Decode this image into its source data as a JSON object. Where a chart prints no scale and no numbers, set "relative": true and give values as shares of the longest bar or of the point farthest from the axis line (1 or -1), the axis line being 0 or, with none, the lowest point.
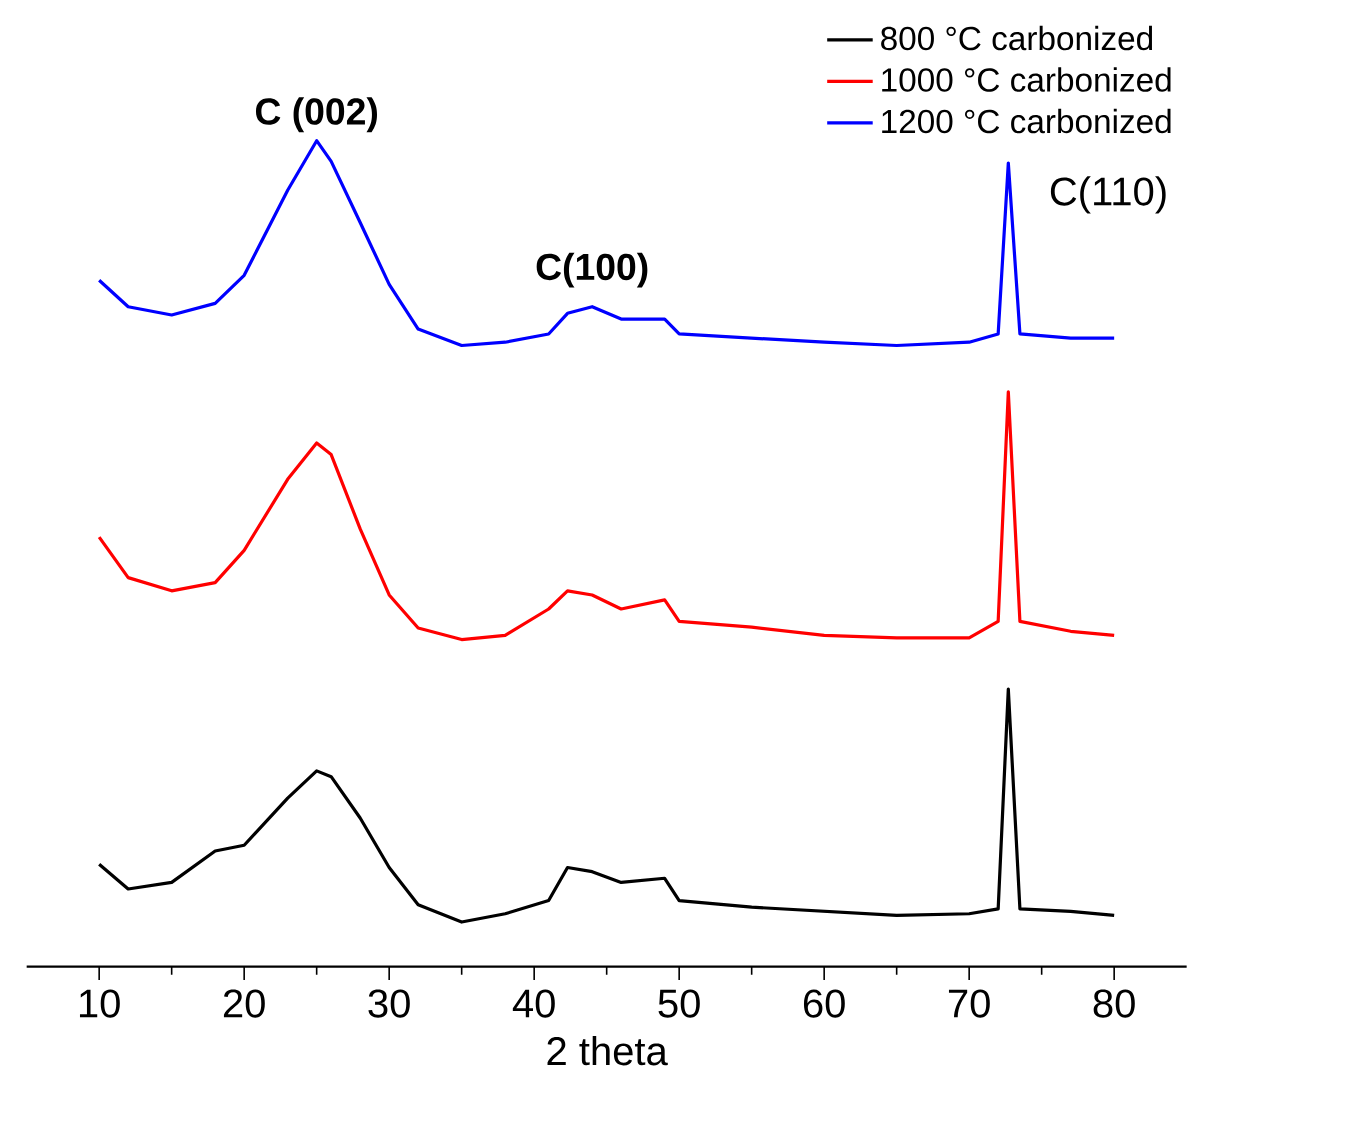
{
  "chart_data": {
    "type": "line",
    "xlabel": "2 theta",
    "relative": true,
    "legend": "top right",
    "xlim": [
      5,
      85
    ],
    "xticks": [
      10,
      20,
      30,
      40,
      50,
      60,
      70,
      80
    ],
    "x": [
      10,
      12,
      15,
      18,
      20,
      23,
      25,
      26,
      28,
      30,
      32,
      35,
      38,
      41,
      42.3,
      44,
      46,
      49,
      50,
      55,
      60,
      65,
      70,
      72,
      72.7,
      73.5,
      77,
      80
    ],
    "series": [
      {
        "name": "800 °C carbonized",
        "color": "#000000",
        "values": [
          0.124,
          0.094,
          0.102,
          0.14,
          0.147,
          0.204,
          0.237,
          0.23,
          0.18,
          0.12,
          0.075,
          0.054,
          0.064,
          0.08,
          0.12,
          0.115,
          0.102,
          0.107,
          0.08,
          0.072,
          0.067,
          0.062,
          0.064,
          0.07,
          0.336,
          0.07,
          0.067,
          0.062
        ]
      },
      {
        "name": "1000 °C carbonized",
        "color": "#ff0000",
        "values": [
          0.52,
          0.471,
          0.455,
          0.465,
          0.504,
          0.59,
          0.634,
          0.62,
          0.53,
          0.45,
          0.41,
          0.396,
          0.401,
          0.433,
          0.455,
          0.45,
          0.433,
          0.444,
          0.418,
          0.411,
          0.401,
          0.398,
          0.398,
          0.418,
          0.696,
          0.418,
          0.406,
          0.401
        ]
      },
      {
        "name": "1200 °C carbonized",
        "color": "#0000ff",
        "values": [
          0.831,
          0.799,
          0.789,
          0.803,
          0.837,
          0.94,
          1.0,
          0.975,
          0.901,
          0.826,
          0.772,
          0.752,
          0.756,
          0.766,
          0.791,
          0.799,
          0.784,
          0.784,
          0.766,
          0.761,
          0.756,
          0.752,
          0.756,
          0.766,
          0.973,
          0.766,
          0.761,
          0.761
        ]
      }
    ],
    "annotations": [
      {
        "text": "C (002)",
        "x": 25,
        "y": 1.0
      },
      {
        "text": "C(100)",
        "x": 44,
        "y": 0.799
      },
      {
        "text": "C(110)",
        "x": 72.7,
        "y": 0.973
      }
    ]
  }
}
